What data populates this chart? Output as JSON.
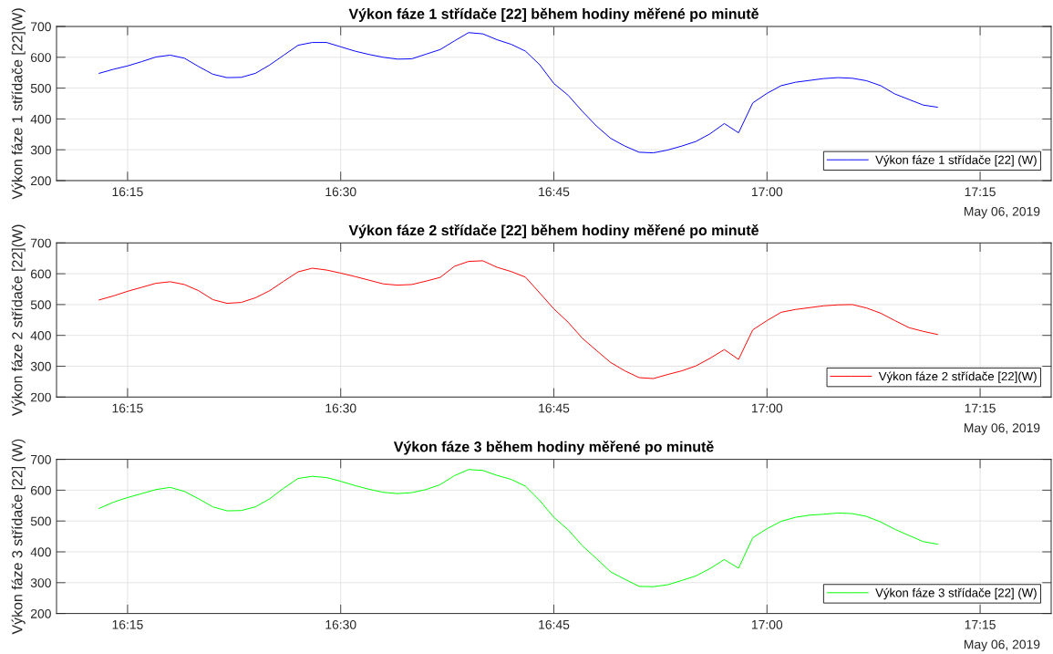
{
  "chart_data": [
    {
      "type": "line",
      "title": "Výkon fáze 1 střídače [22] během hodiny měřené po minutě",
      "ylabel": "Výkon fáze 1 střídače [22](W)",
      "x": [
        "2019-05-06T16:13",
        "2019-05-06T16:14",
        "2019-05-06T16:15",
        "2019-05-06T16:16",
        "2019-05-06T16:17",
        "2019-05-06T16:18",
        "2019-05-06T16:19",
        "2019-05-06T16:20",
        "2019-05-06T16:21",
        "2019-05-06T16:22",
        "2019-05-06T16:23",
        "2019-05-06T16:24",
        "2019-05-06T16:25",
        "2019-05-06T16:26",
        "2019-05-06T16:27",
        "2019-05-06T16:28",
        "2019-05-06T16:29",
        "2019-05-06T16:30",
        "2019-05-06T16:31",
        "2019-05-06T16:32",
        "2019-05-06T16:33",
        "2019-05-06T16:34",
        "2019-05-06T16:35",
        "2019-05-06T16:36",
        "2019-05-06T16:37",
        "2019-05-06T16:38",
        "2019-05-06T16:39",
        "2019-05-06T16:40",
        "2019-05-06T16:41",
        "2019-05-06T16:42",
        "2019-05-06T16:43",
        "2019-05-06T16:44",
        "2019-05-06T16:45",
        "2019-05-06T16:46",
        "2019-05-06T16:47",
        "2019-05-06T16:48",
        "2019-05-06T16:49",
        "2019-05-06T16:50",
        "2019-05-06T16:51",
        "2019-05-06T16:52",
        "2019-05-06T16:53",
        "2019-05-06T16:54",
        "2019-05-06T16:55",
        "2019-05-06T16:56",
        "2019-05-06T16:57",
        "2019-05-06T16:58",
        "2019-05-06T16:59",
        "2019-05-06T17:00",
        "2019-05-06T17:01",
        "2019-05-06T17:02",
        "2019-05-06T17:03",
        "2019-05-06T17:04",
        "2019-05-06T17:05",
        "2019-05-06T17:06",
        "2019-05-06T17:07",
        "2019-05-06T17:08",
        "2019-05-06T17:09",
        "2019-05-06T17:10",
        "2019-05-06T17:11",
        "2019-05-06T17:12"
      ],
      "series": [
        {
          "name": "Výkon fáze 1 střídače [22] (W)",
          "color": "#0000ff",
          "values": [
            548,
            561,
            572,
            586,
            601,
            607,
            597,
            570,
            545,
            534,
            535,
            548,
            575,
            607,
            639,
            648,
            648,
            634,
            620,
            609,
            600,
            594,
            595,
            610,
            625,
            653,
            680,
            676,
            657,
            642,
            620,
            576,
            515,
            477,
            425,
            377,
            337,
            312,
            292,
            290,
            299,
            312,
            327,
            352,
            385,
            355,
            452,
            483,
            508,
            519,
            525,
            531,
            534,
            532,
            524,
            508,
            481,
            463,
            445,
            438
          ]
        }
      ],
      "xlim": [
        "2019-05-06T16:10",
        "2019-05-06T17:20"
      ],
      "xticks": [
        {
          "value": "2019-05-06T16:15",
          "label": "16:15"
        },
        {
          "value": "2019-05-06T16:30",
          "label": "16:30"
        },
        {
          "value": "2019-05-06T16:45",
          "label": "16:45"
        },
        {
          "value": "2019-05-06T17:00",
          "label": "17:00"
        },
        {
          "value": "2019-05-06T17:15",
          "label": "17:15"
        }
      ],
      "ylim": [
        200,
        700
      ],
      "yticks": [
        200,
        300,
        400,
        500,
        600,
        700
      ],
      "grid": true,
      "legend": "bottom right",
      "annotations": [
        "May 06, 2019"
      ]
    },
    {
      "type": "line",
      "title": "Výkon fáze 2 střídače [22] během hodiny měřené po minutě",
      "ylabel": "Výkon fáze 2 střídače [22](W)",
      "x": [
        "2019-05-06T16:13",
        "2019-05-06T16:14",
        "2019-05-06T16:15",
        "2019-05-06T16:16",
        "2019-05-06T16:17",
        "2019-05-06T16:18",
        "2019-05-06T16:19",
        "2019-05-06T16:20",
        "2019-05-06T16:21",
        "2019-05-06T16:22",
        "2019-05-06T16:23",
        "2019-05-06T16:24",
        "2019-05-06T16:25",
        "2019-05-06T16:26",
        "2019-05-06T16:27",
        "2019-05-06T16:28",
        "2019-05-06T16:29",
        "2019-05-06T16:30",
        "2019-05-06T16:31",
        "2019-05-06T16:32",
        "2019-05-06T16:33",
        "2019-05-06T16:34",
        "2019-05-06T16:35",
        "2019-05-06T16:36",
        "2019-05-06T16:37",
        "2019-05-06T16:38",
        "2019-05-06T16:39",
        "2019-05-06T16:40",
        "2019-05-06T16:41",
        "2019-05-06T16:42",
        "2019-05-06T16:43",
        "2019-05-06T16:44",
        "2019-05-06T16:45",
        "2019-05-06T16:46",
        "2019-05-06T16:47",
        "2019-05-06T16:48",
        "2019-05-06T16:49",
        "2019-05-06T16:50",
        "2019-05-06T16:51",
        "2019-05-06T16:52",
        "2019-05-06T16:53",
        "2019-05-06T16:54",
        "2019-05-06T16:55",
        "2019-05-06T16:56",
        "2019-05-06T16:57",
        "2019-05-06T16:58",
        "2019-05-06T16:59",
        "2019-05-06T17:00",
        "2019-05-06T17:01",
        "2019-05-06T17:02",
        "2019-05-06T17:03",
        "2019-05-06T17:04",
        "2019-05-06T17:05",
        "2019-05-06T17:06",
        "2019-05-06T17:07",
        "2019-05-06T17:08",
        "2019-05-06T17:09",
        "2019-05-06T17:10",
        "2019-05-06T17:11",
        "2019-05-06T17:12"
      ],
      "series": [
        {
          "name": "Výkon fáze 2 střídače [22](W)",
          "color": "#ff0000",
          "values": [
            515,
            528,
            543,
            556,
            569,
            574,
            565,
            545,
            516,
            504,
            507,
            522,
            545,
            576,
            606,
            618,
            612,
            602,
            591,
            579,
            567,
            563,
            565,
            576,
            588,
            624,
            640,
            642,
            621,
            607,
            589,
            538,
            486,
            443,
            391,
            351,
            312,
            285,
            263,
            260,
            273,
            285,
            301,
            326,
            354,
            322,
            418,
            448,
            475,
            484,
            490,
            496,
            499,
            500,
            489,
            472,
            448,
            425,
            413,
            403
          ]
        }
      ],
      "xlim": [
        "2019-05-06T16:10",
        "2019-05-06T17:20"
      ],
      "xticks": [
        {
          "value": "2019-05-06T16:15",
          "label": "16:15"
        },
        {
          "value": "2019-05-06T16:30",
          "label": "16:30"
        },
        {
          "value": "2019-05-06T16:45",
          "label": "16:45"
        },
        {
          "value": "2019-05-06T17:00",
          "label": "17:00"
        },
        {
          "value": "2019-05-06T17:15",
          "label": "17:15"
        }
      ],
      "ylim": [
        200,
        700
      ],
      "yticks": [
        200,
        300,
        400,
        500,
        600,
        700
      ],
      "grid": true,
      "legend": "bottom right",
      "annotations": [
        "May 06, 2019"
      ]
    },
    {
      "type": "line",
      "title": "Výkon fáze 3 během hodiny měřené po minutě",
      "ylabel": "Výkon fáze 3 střídače [22] (W)",
      "x": [
        "2019-05-06T16:13",
        "2019-05-06T16:14",
        "2019-05-06T16:15",
        "2019-05-06T16:16",
        "2019-05-06T16:17",
        "2019-05-06T16:18",
        "2019-05-06T16:19",
        "2019-05-06T16:20",
        "2019-05-06T16:21",
        "2019-05-06T16:22",
        "2019-05-06T16:23",
        "2019-05-06T16:24",
        "2019-05-06T16:25",
        "2019-05-06T16:26",
        "2019-05-06T16:27",
        "2019-05-06T16:28",
        "2019-05-06T16:29",
        "2019-05-06T16:30",
        "2019-05-06T16:31",
        "2019-05-06T16:32",
        "2019-05-06T16:33",
        "2019-05-06T16:34",
        "2019-05-06T16:35",
        "2019-05-06T16:36",
        "2019-05-06T16:37",
        "2019-05-06T16:38",
        "2019-05-06T16:39",
        "2019-05-06T16:40",
        "2019-05-06T16:41",
        "2019-05-06T16:42",
        "2019-05-06T16:43",
        "2019-05-06T16:44",
        "2019-05-06T16:45",
        "2019-05-06T16:46",
        "2019-05-06T16:47",
        "2019-05-06T16:48",
        "2019-05-06T16:49",
        "2019-05-06T16:50",
        "2019-05-06T16:51",
        "2019-05-06T16:52",
        "2019-05-06T16:53",
        "2019-05-06T16:54",
        "2019-05-06T16:55",
        "2019-05-06T16:56",
        "2019-05-06T16:57",
        "2019-05-06T16:58",
        "2019-05-06T16:59",
        "2019-05-06T17:00",
        "2019-05-06T17:01",
        "2019-05-06T17:02",
        "2019-05-06T17:03",
        "2019-05-06T17:04",
        "2019-05-06T17:05",
        "2019-05-06T17:06",
        "2019-05-06T17:07",
        "2019-05-06T17:08",
        "2019-05-06T17:09",
        "2019-05-06T17:10",
        "2019-05-06T17:11",
        "2019-05-06T17:12"
      ],
      "series": [
        {
          "name": "Výkon fáze 3 střídače [22] (W)",
          "color": "#00ff00",
          "values": [
            541,
            561,
            576,
            589,
            602,
            609,
            596,
            572,
            546,
            533,
            534,
            546,
            572,
            607,
            638,
            645,
            641,
            629,
            615,
            603,
            593,
            589,
            592,
            602,
            618,
            647,
            667,
            664,
            648,
            635,
            613,
            567,
            512,
            472,
            420,
            378,
            335,
            311,
            288,
            287,
            293,
            307,
            322,
            346,
            375,
            347,
            446,
            475,
            499,
            512,
            519,
            522,
            526,
            524,
            515,
            497,
            473,
            453,
            433,
            425
          ]
        }
      ],
      "xlim": [
        "2019-05-06T16:10",
        "2019-05-06T17:20"
      ],
      "xticks": [
        {
          "value": "2019-05-06T16:15",
          "label": "16:15"
        },
        {
          "value": "2019-05-06T16:30",
          "label": "16:30"
        },
        {
          "value": "2019-05-06T16:45",
          "label": "16:45"
        },
        {
          "value": "2019-05-06T17:00",
          "label": "17:00"
        },
        {
          "value": "2019-05-06T17:15",
          "label": "17:15"
        }
      ],
      "ylim": [
        200,
        700
      ],
      "yticks": [
        200,
        300,
        400,
        500,
        600,
        700
      ],
      "grid": true,
      "legend": "bottom right",
      "annotations": [
        "May 06, 2019"
      ]
    }
  ]
}
